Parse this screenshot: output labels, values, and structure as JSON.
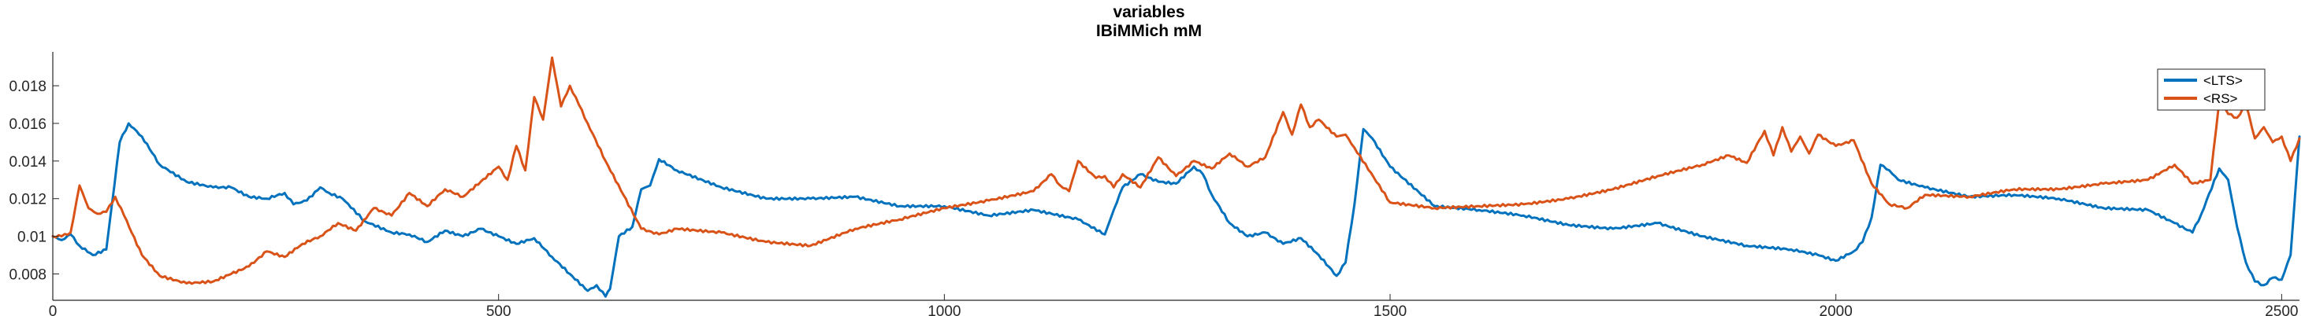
{
  "chart_data": {
    "type": "line",
    "title": "variables",
    "subtitle": "IBiMMich mM",
    "xlabel": "",
    "ylabel": "",
    "xlim": [
      0,
      2520
    ],
    "ylim": [
      0.0066,
      0.0198
    ],
    "xticks": [
      0,
      500,
      1000,
      1500,
      2000,
      2500
    ],
    "xtick_labels": [
      "0",
      "500",
      "1000",
      "1500",
      "2000",
      "2500"
    ],
    "yticks": [
      0.008,
      0.01,
      0.012,
      0.014,
      0.016,
      0.018
    ],
    "ytick_labels": [
      "0.008",
      "0.01",
      "0.012",
      "0.014",
      "0.016",
      "0.018"
    ],
    "grid": false,
    "legend_position": "top-right",
    "series": [
      {
        "name": "<LTS>",
        "color": "#0072BD",
        "x": [
          0,
          10,
          20,
          30,
          45,
          60,
          75,
          85,
          100,
          120,
          150,
          180,
          200,
          220,
          240,
          260,
          270,
          285,
          300,
          310,
          325,
          350,
          380,
          400,
          420,
          440,
          460,
          480,
          500,
          520,
          540,
          560,
          580,
          600,
          610,
          620,
          625,
          635,
          650,
          660,
          670,
          680,
          700,
          750,
          800,
          850,
          900,
          950,
          1000,
          1050,
          1100,
          1150,
          1180,
          1190,
          1200,
          1220,
          1240,
          1260,
          1280,
          1290,
          1300,
          1320,
          1340,
          1360,
          1380,
          1400,
          1420,
          1440,
          1450,
          1460,
          1470,
          1480,
          1500,
          1550,
          1600,
          1650,
          1700,
          1750,
          1800,
          1850,
          1900,
          1950,
          1980,
          2000,
          2020,
          2030,
          2040,
          2050,
          2060,
          2070,
          2100,
          2150,
          2200,
          2250,
          2300,
          2350,
          2380,
          2400,
          2410,
          2430,
          2440,
          2450,
          2460,
          2470,
          2480,
          2490,
          2500,
          2510,
          2520
        ],
        "values": [
          0.01,
          0.0098,
          0.0101,
          0.0095,
          0.009,
          0.0093,
          0.015,
          0.016,
          0.0153,
          0.0138,
          0.0129,
          0.0126,
          0.0126,
          0.0121,
          0.012,
          0.0123,
          0.0117,
          0.0119,
          0.0126,
          0.0123,
          0.012,
          0.0108,
          0.0102,
          0.0101,
          0.0097,
          0.0103,
          0.01,
          0.0104,
          0.01,
          0.0096,
          0.0099,
          0.0089,
          0.008,
          0.0071,
          0.0074,
          0.0068,
          0.0072,
          0.01,
          0.0105,
          0.0125,
          0.0127,
          0.0141,
          0.0135,
          0.0126,
          0.012,
          0.012,
          0.0121,
          0.0116,
          0.0116,
          0.0111,
          0.0114,
          0.0109,
          0.0101,
          0.0114,
          0.0126,
          0.0133,
          0.0129,
          0.0128,
          0.0137,
          0.0133,
          0.0122,
          0.0107,
          0.01,
          0.0102,
          0.0096,
          0.0099,
          0.009,
          0.0079,
          0.0086,
          0.0117,
          0.0157,
          0.0152,
          0.0137,
          0.0116,
          0.0114,
          0.0111,
          0.0106,
          0.0104,
          0.0107,
          0.01,
          0.0095,
          0.0093,
          0.009,
          0.0087,
          0.0092,
          0.0097,
          0.011,
          0.0138,
          0.0135,
          0.013,
          0.0126,
          0.0121,
          0.0122,
          0.012,
          0.0115,
          0.0114,
          0.0107,
          0.0102,
          0.0112,
          0.0136,
          0.013,
          0.0105,
          0.0086,
          0.0076,
          0.0074,
          0.0078,
          0.0077,
          0.009,
          0.0153
        ]
      },
      {
        "name": "<RS>",
        "color": "#D95319",
        "x": [
          0,
          10,
          20,
          30,
          40,
          50,
          60,
          70,
          80,
          100,
          120,
          150,
          180,
          200,
          220,
          240,
          260,
          280,
          300,
          320,
          340,
          360,
          380,
          400,
          420,
          440,
          460,
          480,
          500,
          510,
          520,
          530,
          540,
          550,
          560,
          570,
          580,
          590,
          600,
          620,
          640,
          660,
          680,
          700,
          750,
          800,
          850,
          900,
          950,
          1000,
          1050,
          1100,
          1120,
          1130,
          1140,
          1150,
          1170,
          1180,
          1190,
          1200,
          1220,
          1240,
          1260,
          1280,
          1300,
          1320,
          1340,
          1360,
          1380,
          1390,
          1400,
          1410,
          1420,
          1440,
          1450,
          1460,
          1500,
          1550,
          1600,
          1650,
          1700,
          1750,
          1800,
          1850,
          1880,
          1900,
          1920,
          1930,
          1940,
          1950,
          1960,
          1970,
          1980,
          2000,
          2020,
          2040,
          2060,
          2080,
          2100,
          2150,
          2200,
          2250,
          2300,
          2350,
          2380,
          2400,
          2420,
          2430,
          2440,
          2450,
          2460,
          2470,
          2480,
          2490,
          2500,
          2510,
          2520
        ],
        "values": [
          0.01,
          0.01,
          0.0102,
          0.0127,
          0.0115,
          0.0112,
          0.0113,
          0.0121,
          0.0111,
          0.009,
          0.0079,
          0.0075,
          0.0076,
          0.008,
          0.0084,
          0.0092,
          0.0089,
          0.0096,
          0.01,
          0.0107,
          0.0103,
          0.0115,
          0.0111,
          0.0123,
          0.0116,
          0.0125,
          0.0121,
          0.0129,
          0.0137,
          0.013,
          0.0148,
          0.0135,
          0.0174,
          0.0162,
          0.0195,
          0.0169,
          0.018,
          0.017,
          0.016,
          0.014,
          0.0122,
          0.0104,
          0.0101,
          0.0104,
          0.0102,
          0.0097,
          0.0095,
          0.0104,
          0.0109,
          0.0115,
          0.0119,
          0.0124,
          0.0133,
          0.0127,
          0.0124,
          0.014,
          0.0131,
          0.0132,
          0.0126,
          0.0133,
          0.0126,
          0.0142,
          0.0132,
          0.014,
          0.0136,
          0.0144,
          0.0137,
          0.0142,
          0.0166,
          0.0154,
          0.017,
          0.0158,
          0.0162,
          0.0153,
          0.0154,
          0.0147,
          0.0118,
          0.0115,
          0.0116,
          0.0117,
          0.012,
          0.0125,
          0.0132,
          0.0138,
          0.0143,
          0.0139,
          0.0156,
          0.0143,
          0.0158,
          0.0145,
          0.0153,
          0.0144,
          0.0154,
          0.0148,
          0.0151,
          0.0128,
          0.0117,
          0.0115,
          0.0122,
          0.0121,
          0.0125,
          0.0125,
          0.0128,
          0.013,
          0.0138,
          0.0128,
          0.013,
          0.0172,
          0.0165,
          0.0163,
          0.017,
          0.0152,
          0.0158,
          0.015,
          0.0153,
          0.014,
          0.0152
        ]
      }
    ]
  }
}
